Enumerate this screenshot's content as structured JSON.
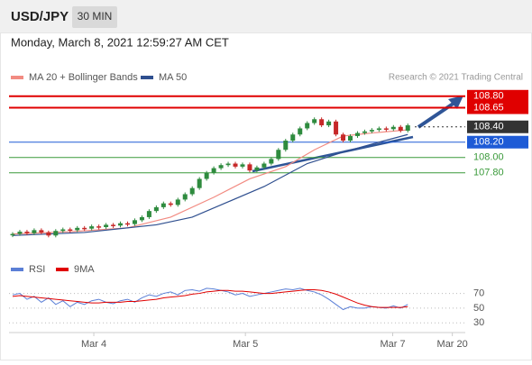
{
  "header": {
    "symbol": "USD/JPY",
    "interval": "30 MIN",
    "timestamp": "Monday, March 8, 2021 12:59:27 AM CET"
  },
  "chart_data": [
    {
      "type": "candlestick",
      "legend": [
        "MA 20 + Bollinger Bands",
        "MA 50"
      ],
      "legend_colors": [
        "#f28b82",
        "#2f4f8f"
      ],
      "credit": "Research © 2021 Trading Central",
      "x": [
        0,
        1,
        2,
        3,
        4,
        5,
        6,
        7,
        8,
        9,
        10,
        11,
        12,
        13,
        14,
        15,
        16,
        17,
        18,
        19,
        20,
        21,
        22,
        23,
        24,
        25,
        26,
        27,
        28,
        29,
        30,
        31,
        32,
        33,
        34,
        35,
        36,
        37,
        38,
        39,
        40,
        41,
        42,
        43,
        44,
        45,
        46,
        47,
        48,
        49,
        50,
        51,
        52,
        53,
        54,
        55
      ],
      "values": [
        107.0,
        107.03,
        107.01,
        107.05,
        107.02,
        106.98,
        107.04,
        107.06,
        107.05,
        107.08,
        107.07,
        107.1,
        107.09,
        107.12,
        107.11,
        107.14,
        107.13,
        107.18,
        107.22,
        107.3,
        107.35,
        107.4,
        107.38,
        107.45,
        107.52,
        107.6,
        107.72,
        107.8,
        107.86,
        107.9,
        107.92,
        107.88,
        107.91,
        107.83,
        107.87,
        107.92,
        107.98,
        108.1,
        108.22,
        108.3,
        108.38,
        108.45,
        108.5,
        108.42,
        108.47,
        108.3,
        108.22,
        108.28,
        108.32,
        108.34,
        108.36,
        108.38,
        108.37,
        108.4,
        108.35,
        108.42
      ],
      "up_color": "#2e8b3e",
      "down_color": "#c62828",
      "series": [
        {
          "name": "MA 20",
          "color": "#f28b82",
          "x": [
            0,
            8,
            16,
            22,
            28,
            33,
            38,
            42,
            46,
            50,
            55
          ],
          "values": [
            107.0,
            107.03,
            107.08,
            107.22,
            107.48,
            107.72,
            107.88,
            108.1,
            108.28,
            108.32,
            108.36
          ]
        },
        {
          "name": "MA 50",
          "color": "#2f4f8f",
          "x": [
            0,
            10,
            20,
            25,
            30,
            35,
            41,
            46,
            51,
            55
          ],
          "values": [
            106.98,
            107.02,
            107.12,
            107.22,
            107.42,
            107.62,
            107.92,
            108.07,
            108.2,
            108.3
          ]
        }
      ],
      "levels": [
        {
          "value": 108.8,
          "label": "108.80",
          "color": "#e00000",
          "box": true
        },
        {
          "value": 108.65,
          "label": "108.65",
          "color": "#e00000",
          "box": true
        },
        {
          "value": 108.4,
          "label": "108.40",
          "color": "#333333",
          "box": true
        },
        {
          "value": 108.2,
          "label": "108.20",
          "color": "#1e5bd6",
          "box": true
        },
        {
          "value": 108,
          "label": "108.00",
          "color": "#3a9a3a",
          "box": false
        },
        {
          "value": 107.8,
          "label": "107.80",
          "color": "#3a9a3a",
          "box": false
        }
      ],
      "xlim": [
        0,
        63
      ],
      "ylim": [
        106.76,
        108.88
      ],
      "xticks": [
        {
          "value": 11.3,
          "label": "Mar 4"
        },
        {
          "value": 32.4,
          "label": "Mar 5"
        },
        {
          "value": 52.9,
          "label": "Mar 7"
        },
        {
          "value": 61.2,
          "label": "Mar 20"
        }
      ]
    },
    {
      "type": "line",
      "xlim": [
        0,
        63
      ],
      "ylim": [
        18,
        105
      ],
      "yticks": [
        30,
        50,
        70
      ],
      "x": [
        0,
        1,
        2,
        3,
        4,
        5,
        6,
        7,
        8,
        9,
        10,
        11,
        12,
        13,
        14,
        15,
        16,
        17,
        18,
        19,
        20,
        21,
        22,
        23,
        24,
        25,
        26,
        27,
        28,
        29,
        30,
        31,
        32,
        33,
        34,
        35,
        36,
        37,
        38,
        39,
        40,
        41,
        42,
        43,
        44,
        45,
        46,
        47,
        48,
        49,
        50,
        51,
        52,
        53,
        54,
        55
      ],
      "series": [
        {
          "name": "RSI",
          "color": "#5b7fd6",
          "values": [
            68,
            70,
            62,
            66,
            58,
            64,
            55,
            60,
            52,
            58,
            55,
            60,
            62,
            58,
            56,
            60,
            62,
            58,
            64,
            68,
            66,
            70,
            72,
            68,
            74,
            75,
            73,
            77,
            76,
            74,
            72,
            68,
            70,
            66,
            68,
            70,
            72,
            74,
            76,
            75,
            77,
            74,
            72,
            68,
            62,
            55,
            48,
            52,
            50,
            50,
            52,
            51,
            50,
            53,
            50,
            55
          ]
        },
        {
          "name": "9MA",
          "color": "#e00000",
          "values": [
            66,
            67,
            66,
            65,
            64,
            63,
            62,
            61,
            60,
            59,
            58,
            57,
            57,
            58,
            58,
            58,
            59,
            59,
            60,
            61,
            62,
            64,
            65,
            66,
            67,
            69,
            70,
            72,
            73,
            74,
            74,
            73,
            73,
            72,
            71,
            70,
            70,
            71,
            72,
            73,
            74,
            75,
            75,
            74,
            72,
            69,
            65,
            61,
            57,
            54,
            52,
            51,
            51,
            51,
            51,
            52
          ]
        }
      ]
    }
  ]
}
